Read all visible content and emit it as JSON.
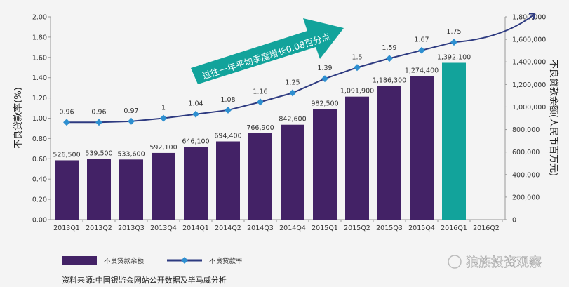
{
  "chart_data": {
    "type": "bar+line",
    "categories": [
      "2013Q1",
      "2013Q2",
      "2013Q3",
      "2013Q4",
      "2014Q1",
      "2014Q2",
      "2014Q3",
      "2014Q4",
      "2015Q1",
      "2015Q2",
      "2015Q3",
      "2015Q4",
      "2016Q1",
      "2016Q2"
    ],
    "series": [
      {
        "name": "不良贷款余额",
        "type": "bar",
        "axis": "right",
        "values": [
          526500,
          539500,
          533600,
          592100,
          646100,
          694400,
          766900,
          842600,
          982500,
          1091900,
          1186300,
          1274400,
          1392100,
          null
        ],
        "labels": [
          "526,500",
          "539,500",
          "533,600",
          "592,100",
          "646,100",
          "694,400",
          "766,900",
          "842,600",
          "982,500",
          "1,091,900",
          "1,186,300",
          "1,274,400",
          "1,392,100",
          ""
        ],
        "color": "#432266",
        "highlight_color": "#12a39b"
      },
      {
        "name": "不良贷款率",
        "type": "line",
        "axis": "left",
        "values": [
          0.96,
          0.96,
          0.97,
          1,
          1.04,
          1.08,
          1.16,
          1.25,
          1.39,
          1.5,
          1.59,
          1.67,
          1.75,
          null
        ],
        "labels": [
          "0.96",
          "0.96",
          "0.97",
          "1",
          "1.04",
          "1.08",
          "1.16",
          "1.25",
          "1.39",
          "1.5",
          "1.59",
          "1.67",
          "1.75",
          ""
        ],
        "color": "#2d3a80",
        "marker_color": "#2e8fd0"
      }
    ],
    "ylabel": "不良贷款率(%)",
    "ylim": [
      0,
      2
    ],
    "yticks": [
      "0.00",
      "0.20",
      "0.40",
      "0.60",
      "0.80",
      "1.00",
      "1.20",
      "1.40",
      "1.60",
      "1.80",
      "2.00"
    ],
    "y2label": "不良贷款余额(人民币百万元)",
    "y2lim": [
      0,
      1800000
    ],
    "y2ticks": [
      "0",
      "200,000",
      "400,000",
      "600,000",
      "800,000",
      "1,000,000",
      "1,200,000",
      "1,400,000",
      "1,600,000",
      "1,800,000"
    ],
    "annotation": "过往一年平均季度增长0.08百分点",
    "annotation_color": "#12a39b",
    "legend_placement": "bottom-left",
    "grid": false
  },
  "source": "资料来源:中国银监会网站公开数据及毕马威分析",
  "watermark": "狼族投资观察"
}
